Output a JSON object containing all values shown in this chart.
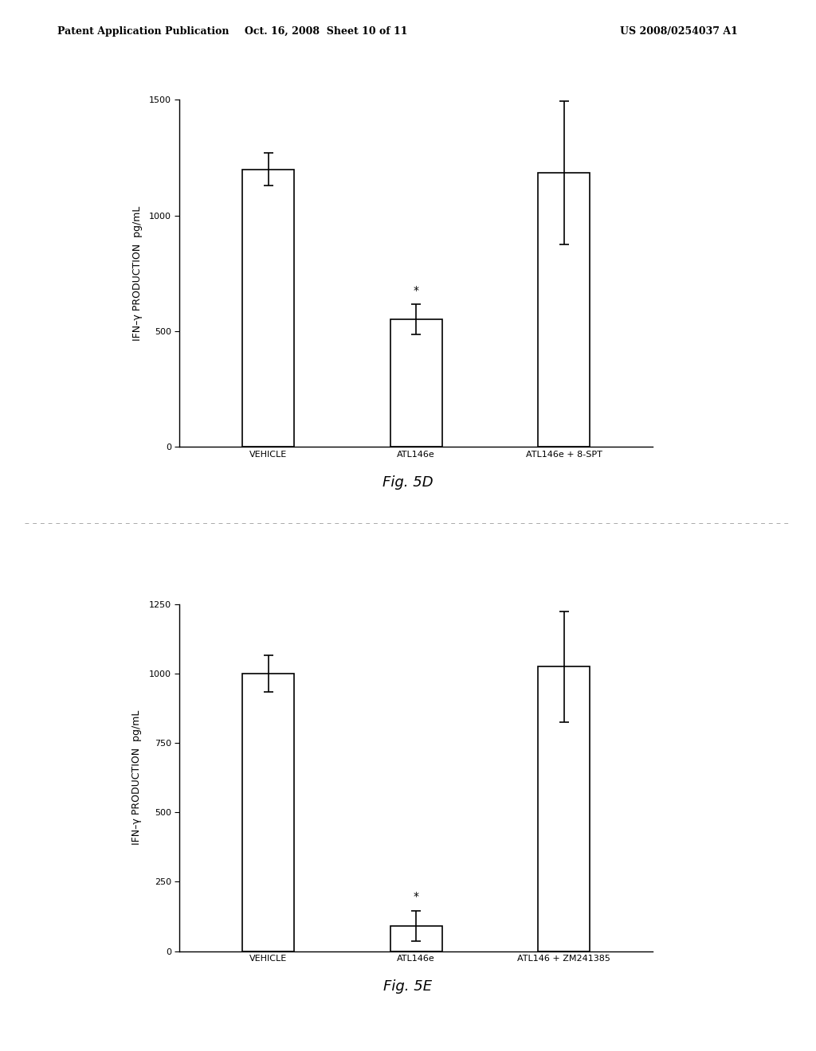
{
  "fig5d": {
    "categories": [
      "VEHICLE",
      "ATL146e",
      "ATL146e + 8-SPT"
    ],
    "values": [
      1200,
      550,
      1185
    ],
    "errors": [
      70,
      65,
      310
    ],
    "ylim": [
      0,
      1500
    ],
    "yticks": [
      0,
      500,
      1000,
      1500
    ],
    "ylabel": "IFN–γ PRODUCTION  pg/mL",
    "asterisk_idx": 1,
    "caption": "Fig. 5D"
  },
  "fig5e": {
    "categories": [
      "VEHICLE",
      "ATL146e",
      "ATL146 + ZM241385"
    ],
    "values": [
      1000,
      90,
      1025
    ],
    "errors": [
      65,
      55,
      200
    ],
    "ylim": [
      0,
      1250
    ],
    "yticks": [
      0,
      250,
      500,
      750,
      1000,
      1250
    ],
    "ylabel": "IFN–γ PRODUCTION  pg/mL",
    "asterisk_idx": 1,
    "caption": "Fig. 5E"
  },
  "bar_facecolor": "#ffffff",
  "bar_edgecolor": "#000000",
  "bar_linewidth": 1.2,
  "bar_width": 0.35,
  "background_color": "#ffffff",
  "text_color": "#000000",
  "header_line1": "Patent Application Publication",
  "header_line2": "Oct. 16, 2008  Sheet 10 of 11",
  "header_line3": "US 2008/0254037 A1",
  "errorbar_capsize": 4,
  "errorbar_linewidth": 1.2,
  "ylabel_fontsize": 9,
  "tick_fontsize": 8,
  "xtick_fontsize": 8,
  "caption_fontsize": 13,
  "header_fontsize": 9
}
